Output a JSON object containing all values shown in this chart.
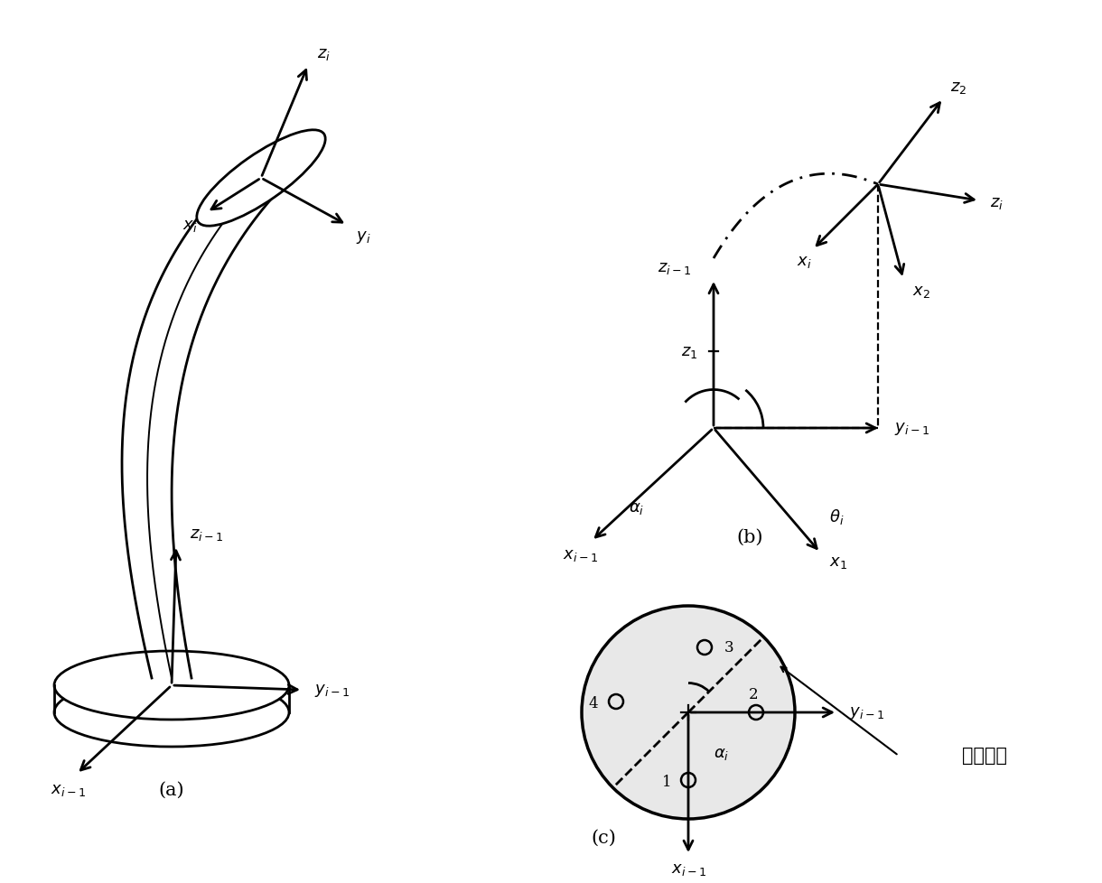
{
  "bg_color": "#ffffff",
  "line_color": "#000000",
  "figsize": [
    12.2,
    9.79
  ],
  "dpi": 100,
  "title_a": "(a)",
  "title_b": "(b)",
  "title_c": "(c)",
  "label_wenqu": "弯曲平面"
}
